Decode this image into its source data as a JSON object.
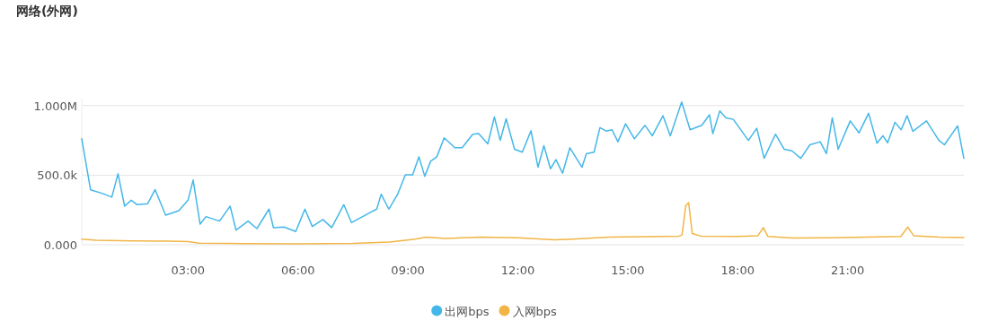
{
  "chart_data": {
    "type": "line",
    "title": "网络(外网)",
    "xlim": [
      0.1,
      24.17
    ],
    "ylim": [
      0,
      1050000
    ],
    "xticks": [
      {
        "value": 3,
        "label": "03:00"
      },
      {
        "value": 6,
        "label": "06:00"
      },
      {
        "value": 9,
        "label": "09:00"
      },
      {
        "value": 12,
        "label": "12:00"
      },
      {
        "value": 15,
        "label": "15:00"
      },
      {
        "value": 18,
        "label": "18:00"
      },
      {
        "value": 21,
        "label": "21:00"
      }
    ],
    "yticks": [
      {
        "value": 0,
        "label": "0.000"
      },
      {
        "value": 500000,
        "label": "500.0k"
      },
      {
        "value": 1000000,
        "label": "1.000M"
      }
    ],
    "grid": "y",
    "legend": "bottom",
    "series": [
      {
        "name": "出网bps",
        "color": "#44b7e8",
        "x": [
          0.1,
          0.34,
          0.67,
          0.92,
          1.09,
          1.27,
          1.45,
          1.61,
          1.9,
          2.1,
          2.39,
          2.75,
          3.0,
          3.14,
          3.33,
          3.49,
          3.86,
          4.15,
          4.31,
          4.64,
          4.88,
          5.21,
          5.33,
          5.62,
          5.94,
          6.19,
          6.39,
          6.68,
          6.92,
          7.25,
          7.46,
          7.99,
          8.15,
          8.27,
          8.48,
          8.72,
          8.93,
          9.13,
          9.3,
          9.46,
          9.62,
          9.79,
          9.99,
          10.28,
          10.48,
          10.77,
          10.93,
          11.18,
          11.36,
          11.52,
          11.68,
          11.91,
          12.12,
          12.36,
          12.55,
          12.71,
          12.89,
          13.04,
          13.22,
          13.42,
          13.75,
          13.87,
          14.08,
          14.24,
          14.41,
          14.57,
          14.73,
          14.94,
          15.18,
          15.47,
          15.67,
          15.96,
          16.16,
          16.47,
          16.7,
          17.02,
          17.23,
          17.32,
          17.51,
          17.68,
          17.88,
          18.29,
          18.52,
          18.72,
          19.03,
          19.27,
          19.48,
          19.72,
          19.97,
          20.25,
          20.42,
          20.58,
          20.74,
          21.07,
          21.31,
          21.57,
          21.8,
          21.96,
          22.09,
          22.29,
          22.46,
          22.62,
          22.78,
          23.15,
          23.49,
          23.64,
          24.0,
          24.17
        ],
        "values": [
          761000,
          395000,
          368000,
          342000,
          510000,
          277000,
          320000,
          288000,
          295000,
          396000,
          213000,
          245000,
          320000,
          465000,
          148000,
          202000,
          170000,
          277000,
          105000,
          170000,
          116000,
          256000,
          123000,
          127000,
          95000,
          256000,
          131000,
          181000,
          123000,
          288000,
          159000,
          234000,
          256000,
          363000,
          256000,
          363000,
          503000,
          503000,
          632000,
          492000,
          600000,
          632000,
          768000,
          697000,
          697000,
          794000,
          798000,
          725000,
          918000,
          750000,
          905000,
          686000,
          665000,
          819000,
          557000,
          712000,
          546000,
          611000,
          514000,
          697000,
          557000,
          654000,
          665000,
          841000,
          817000,
          826000,
          740000,
          869000,
          761000,
          858000,
          783000,
          927000,
          783000,
          1026000,
          826000,
          858000,
          934000,
          798000,
          961000,
          912000,
          901000,
          750000,
          837000,
          621000,
          794000,
          686000,
          675000,
          621000,
          718000,
          740000,
          654000,
          912000,
          686000,
          890000,
          804000,
          945000,
          729000,
          783000,
          733000,
          880000,
          826000,
          927000,
          815000,
          890000,
          750000,
          718000,
          854000,
          621000
        ]
      },
      {
        "name": "入网bps",
        "color": "#f1b546",
        "x": [
          0.1,
          0.5,
          1.5,
          2.5,
          3.0,
          3.3,
          4.5,
          6.0,
          7.5,
          8.5,
          9.2,
          9.5,
          10.0,
          11.0,
          12.0,
          13.0,
          13.5,
          14.5,
          15.5,
          16.4,
          16.48,
          16.58,
          16.66,
          16.76,
          17.0,
          18.0,
          18.55,
          18.7,
          18.82,
          19.5,
          20.5,
          21.5,
          22.45,
          22.64,
          22.8,
          23.5,
          24.17
        ],
        "values": [
          40000,
          32000,
          28000,
          25000,
          22000,
          12000,
          8000,
          6000,
          10000,
          20000,
          40000,
          55000,
          45000,
          55000,
          50000,
          35000,
          40000,
          55000,
          58000,
          62000,
          70000,
          280000,
          303000,
          80000,
          62000,
          60000,
          65000,
          123000,
          60000,
          48000,
          50000,
          55000,
          60000,
          127000,
          65000,
          55000,
          52000
        ]
      }
    ]
  }
}
